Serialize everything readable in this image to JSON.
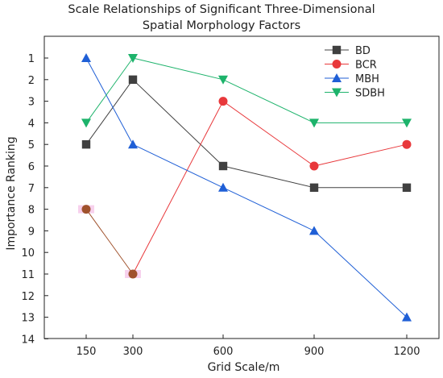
{
  "chart_data": {
    "type": "line",
    "title_line1": "Scale Relationships of Significant Three-Dimensional",
    "title_line2": "Spatial Morphology Factors",
    "xlabel": "Grid Scale/m",
    "ylabel": "Importance Ranking",
    "x": [
      150,
      300,
      600,
      900,
      1200
    ],
    "x_ticks": [
      "150",
      "300",
      "600",
      "900",
      "1200"
    ],
    "y_ticks": [
      "1",
      "2",
      "3",
      "4",
      "5",
      "6",
      "7",
      "8",
      "9",
      "10",
      "11",
      "12",
      "13",
      "14"
    ],
    "ylim": [
      0.5,
      14
    ],
    "y_inverted": true,
    "grid": false,
    "legend_position": "top-right",
    "series": [
      {
        "name": "BD",
        "color": "#404040",
        "marker": "square",
        "values": [
          5,
          2,
          6,
          7,
          7
        ]
      },
      {
        "name": "BCR",
        "color": "#e8383b",
        "marker": "circle",
        "values": [
          8,
          11,
          3,
          6,
          5
        ],
        "segment_colors": [
          "#a0522d",
          "#e8383b",
          "#e8383b",
          "#e8383b"
        ],
        "point_colors": [
          "#a0522d",
          "#a0522d",
          "#e8383b",
          "#e8383b",
          "#e8383b"
        ]
      },
      {
        "name": "MBH",
        "color": "#1f5fd6",
        "marker": "triangle",
        "values": [
          1,
          5,
          7,
          9,
          13
        ]
      },
      {
        "name": "SDBH",
        "color": "#1db36b",
        "marker": "triangle-down",
        "values": [
          4,
          1,
          2,
          4,
          4
        ]
      }
    ]
  }
}
